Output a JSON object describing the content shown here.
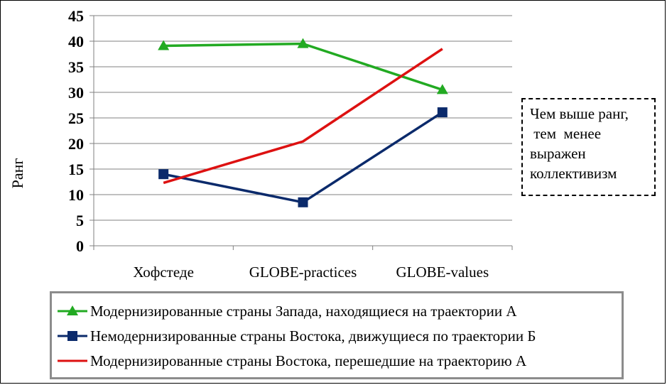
{
  "chart_data": {
    "type": "line",
    "ylabel": "Ранг",
    "ylim": [
      0,
      45
    ],
    "yticks": [
      0,
      5,
      10,
      15,
      20,
      25,
      30,
      35,
      40,
      45
    ],
    "categories": [
      "Хофстеде",
      "GLOBE-practices",
      "GLOBE-values"
    ],
    "grid": "horizontal",
    "legend_position": "bottom",
    "series": [
      {
        "name": "Модернизированные страны Запада, находящиеся на траектории А",
        "values": [
          39.1,
          39.5,
          30.5
        ],
        "color": "#22aa22",
        "marker": "triangle"
      },
      {
        "name": "Немодернизированные страны Востока, движущиеся по траектории Б",
        "values": [
          14.0,
          8.5,
          26.1
        ],
        "color": "#0b2a6b",
        "marker": "square"
      },
      {
        "name": "Модернизированные страны Востока, перешедшие на траекторию А",
        "values": [
          12.3,
          20.4,
          38.5
        ],
        "color": "#dd1111",
        "marker": "none"
      }
    ],
    "annotation": {
      "lines": [
        "Чем выше ранг,",
        " тем  менее",
        "выражен",
        "коллективизм"
      ]
    }
  }
}
